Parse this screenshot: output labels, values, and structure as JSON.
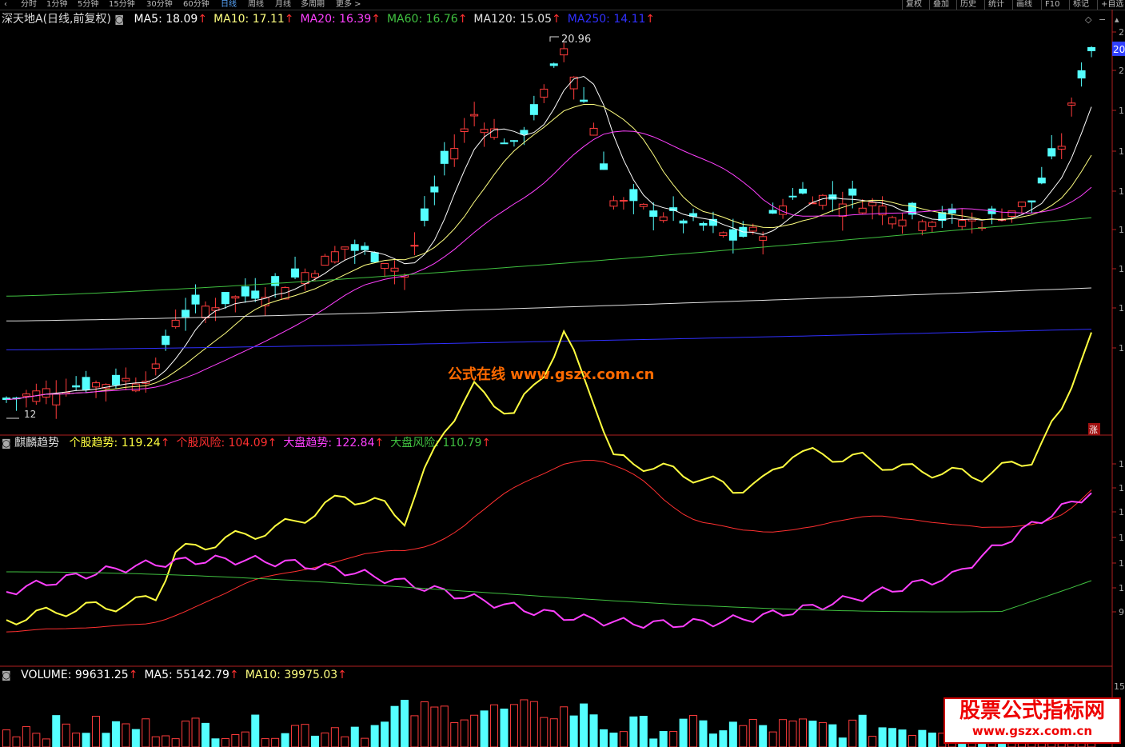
{
  "toolbar": {
    "tabs": [
      "分时",
      "1分钟",
      "5分钟",
      "15分钟",
      "30分钟",
      "60分钟",
      "日线",
      "周线",
      "月线",
      "多周期",
      "更多 >"
    ],
    "active_tab": "日线",
    "right_buttons": [
      "复权",
      "叠加",
      "历史",
      "统计",
      "画线",
      "F10",
      "标记",
      "+自选"
    ],
    "back_icon": "back-arrow-icon"
  },
  "main_panel": {
    "title": "深天地A",
    "subtitle": "(日线,前复权)",
    "indicators": [
      {
        "label": "MA5: 18.09",
        "color": "#ffffff"
      },
      {
        "label": "MA10: 17.11",
        "color": "#ffff80"
      },
      {
        "label": "MA20: 16.39",
        "color": "#ff40ff"
      },
      {
        "label": "MA60: 16.76",
        "color": "#40c040"
      },
      {
        "label": "MA120: 15.05",
        "color": "#e0e0e0"
      },
      {
        "label": "MA250: 14.11",
        "color": "#3030ff"
      }
    ],
    "peak_label": "20.96",
    "low_label": "12",
    "price_tag": "20",
    "limit_badge": "涨"
  },
  "indicator_panel": {
    "name": "麒麟趋势",
    "lines": [
      {
        "label": "个股趋势: 119.24",
        "color": "#ffff40"
      },
      {
        "label": "个股风险: 104.09",
        "color": "#ff3030"
      },
      {
        "label": "大盘趋势: 122.84",
        "color": "#ff40ff"
      },
      {
        "label": "大盘风险: 110.79",
        "color": "#40c040"
      }
    ],
    "axis_marks": [
      "1",
      "1",
      "1",
      "1",
      "1",
      "1",
      "9"
    ]
  },
  "volume_panel": {
    "lines": [
      {
        "label": "VOLUME: 99631.25",
        "color": "#ffffff"
      },
      {
        "label": "MA5: 55142.79",
        "color": "#ffffff"
      },
      {
        "label": "MA10: 39975.03",
        "color": "#ffff80"
      }
    ],
    "axis_mark": "15"
  },
  "watermarks": {
    "center": "公式在线 www.gszx.com.cn",
    "corner_title": "股票公式指标网",
    "corner_url": "www.gszx.com.cn"
  },
  "price_axis_marks": [
    "2",
    "2",
    "1",
    "1",
    "1",
    "1",
    "1",
    "1",
    "1"
  ],
  "colors": {
    "up": "#ff3c3c",
    "down": "#54ffff",
    "up_fill": "#000000"
  }
}
